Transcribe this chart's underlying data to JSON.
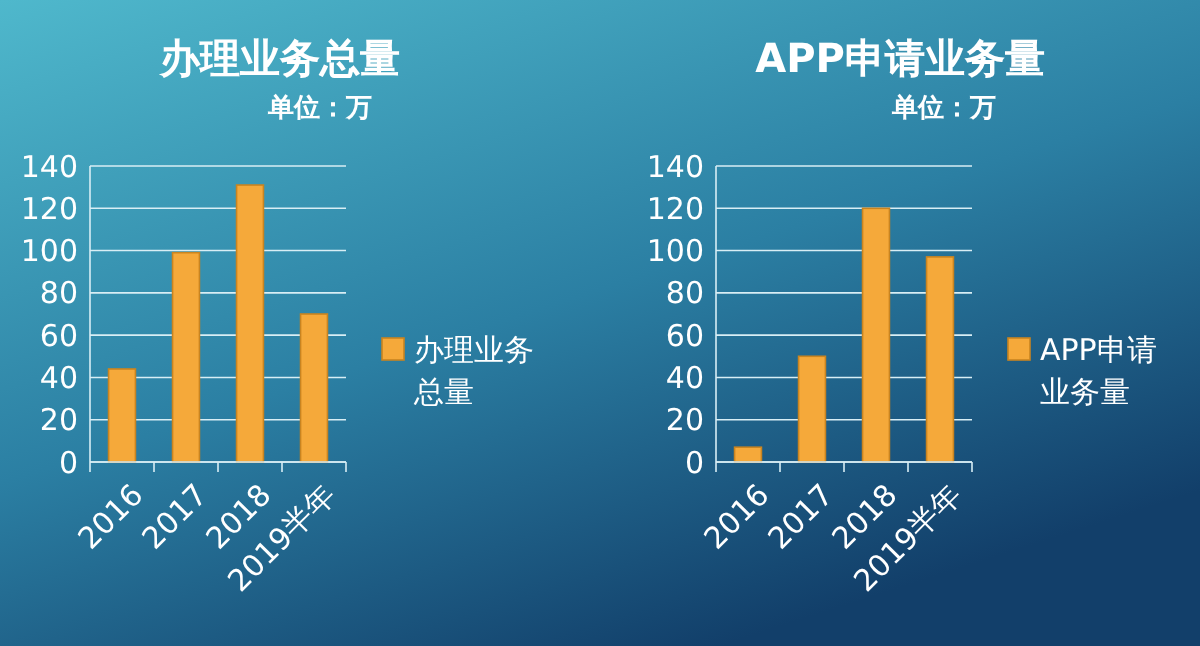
{
  "chart_data": [
    {
      "type": "bar",
      "title": "办理业务总量",
      "subtitle": "单位：万",
      "categories": [
        "2016",
        "2017",
        "2018",
        "2019半年"
      ],
      "series": [
        {
          "name": "办理业务总量",
          "color": "#f5a93a",
          "values": [
            44,
            99,
            131,
            70
          ]
        }
      ],
      "ylim": [
        0,
        140
      ],
      "yticks": [
        0,
        20,
        40,
        60,
        80,
        100,
        120,
        140
      ],
      "grid": "y",
      "legend": "right"
    },
    {
      "type": "bar",
      "title": "APP申请业务量",
      "subtitle": "单位：万",
      "categories": [
        "2016",
        "2017",
        "2018",
        "2019半年"
      ],
      "series": [
        {
          "name": "APP申请业务量",
          "color": "#f5a93a",
          "values": [
            7,
            50,
            120,
            97
          ]
        }
      ],
      "ylim": [
        0,
        140
      ],
      "yticks": [
        0,
        20,
        40,
        60,
        80,
        100,
        120,
        140
      ],
      "grid": "y",
      "legend": "right"
    }
  ]
}
